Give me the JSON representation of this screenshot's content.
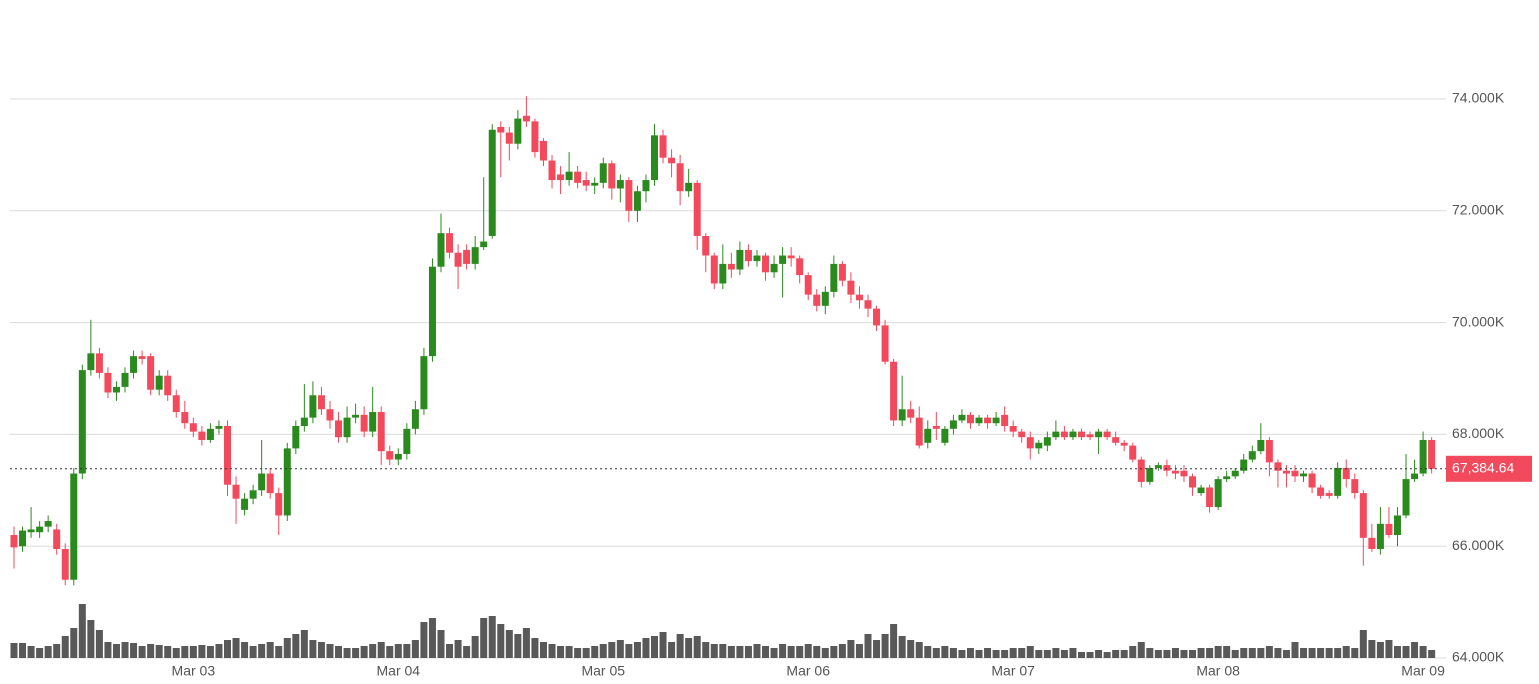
{
  "chart_data": {
    "type": "candlestick",
    "categories": [
      null,
      null,
      null,
      null,
      null,
      null,
      null,
      null,
      null,
      null,
      null,
      null,
      null,
      null,
      null,
      null,
      null,
      null,
      null,
      null,
      null,
      "Mar 03",
      null,
      null,
      null,
      null,
      null,
      null,
      null,
      null,
      null,
      null,
      null,
      null,
      null,
      null,
      null,
      null,
      null,
      null,
      null,
      null,
      null,
      null,
      null,
      "Mar 04",
      null,
      null,
      null,
      null,
      null,
      null,
      null,
      null,
      null,
      null,
      null,
      null,
      null,
      null,
      null,
      null,
      null,
      null,
      null,
      null,
      null,
      null,
      null,
      "Mar 05",
      null,
      null,
      null,
      null,
      null,
      null,
      null,
      null,
      null,
      null,
      null,
      null,
      null,
      null,
      null,
      null,
      null,
      null,
      null,
      null,
      null,
      null,
      null,
      "Mar 06",
      null,
      null,
      null,
      null,
      null,
      null,
      null,
      null,
      null,
      null,
      null,
      null,
      null,
      null,
      null,
      null,
      null,
      null,
      null,
      null,
      null,
      null,
      null,
      "Mar 07",
      null,
      null,
      null,
      null,
      null,
      null,
      null,
      null,
      null,
      null,
      null,
      null,
      null,
      null,
      null,
      null,
      null,
      null,
      null,
      null,
      null,
      null,
      null,
      "Mar 08",
      null,
      null,
      null,
      null,
      null,
      null,
      null,
      null,
      null,
      null,
      null,
      null,
      null,
      null,
      null,
      null,
      null,
      null,
      null,
      null,
      null,
      null,
      null,
      "Mar 09",
      null
    ],
    "open": [
      66200,
      66000,
      66250,
      66250,
      66350,
      66300,
      65950,
      65400,
      67300,
      69150,
      69450,
      69100,
      68750,
      68850,
      69100,
      69400,
      69400,
      68800,
      69050,
      68700,
      68400,
      68200,
      68050,
      67900,
      68100,
      68150,
      67100,
      66650,
      66850,
      67000,
      67300,
      66950,
      66550,
      67750,
      68150,
      68300,
      68700,
      68450,
      68250,
      67950,
      68300,
      68350,
      68050,
      68400,
      67700,
      67550,
      67650,
      68100,
      68450,
      69400,
      71000,
      71600,
      71250,
      71300,
      71050,
      71350,
      71550,
      73500,
      73400,
      73200,
      73700,
      73600,
      73250,
      72900,
      72650,
      72550,
      72700,
      72550,
      72450,
      72500,
      72850,
      72400,
      72550,
      72000,
      72350,
      72550,
      73350,
      72950,
      72850,
      72350,
      72500,
      71550,
      71200,
      70700,
      71050,
      70950,
      71300,
      71100,
      71200,
      70900,
      71050,
      71200,
      71150,
      70850,
      70500,
      70300,
      70550,
      71050,
      70750,
      70500,
      70400,
      70250,
      69950,
      69300,
      68250,
      68450,
      68300,
      67850,
      68150,
      67850,
      68100,
      68250,
      68350,
      68200,
      68300,
      68200,
      68350,
      68150,
      68050,
      67950,
      67750,
      67800,
      67950,
      68050,
      67950,
      68050,
      68000,
      67950,
      68050,
      67950,
      67850,
      67800,
      67550,
      67150,
      67400,
      67450,
      67350,
      67350,
      67250,
      66950,
      67050,
      66700,
      67200,
      67250,
      67350,
      67550,
      67700,
      67900,
      67500,
      67350,
      67350,
      67250,
      67300,
      67050,
      66950,
      66900,
      67400,
      67200,
      66950,
      66150,
      65950,
      66400,
      66200,
      66550,
      67200,
      67300,
      67900
    ],
    "high": [
      66350,
      66350,
      66700,
      66450,
      66550,
      66400,
      66050,
      67400,
      69250,
      70050,
      69550,
      69200,
      68950,
      69200,
      69500,
      69500,
      69450,
      69150,
      69150,
      68800,
      68600,
      68300,
      68150,
      68200,
      68250,
      68250,
      67250,
      66950,
      67100,
      67900,
      67400,
      67050,
      67850,
      68250,
      68900,
      68950,
      68850,
      68600,
      68400,
      68500,
      68550,
      68500,
      68850,
      68500,
      67800,
      67750,
      68200,
      68600,
      69550,
      71150,
      71950,
      71700,
      71400,
      71400,
      71550,
      72600,
      73550,
      73600,
      73500,
      73800,
      74050,
      73650,
      73300,
      73000,
      72800,
      73050,
      72800,
      72700,
      72600,
      72950,
      72900,
      72650,
      72600,
      72450,
      72650,
      73550,
      73450,
      73100,
      73000,
      72750,
      72550,
      71600,
      71250,
      71400,
      71250,
      71450,
      71400,
      71300,
      71250,
      71200,
      71350,
      71350,
      71200,
      70900,
      70600,
      70650,
      71200,
      71100,
      70900,
      70650,
      70500,
      70300,
      70050,
      69350,
      69050,
      68600,
      68500,
      68250,
      68400,
      68150,
      68350,
      68450,
      68400,
      68350,
      68350,
      68400,
      68500,
      68250,
      68100,
      68050,
      67900,
      68050,
      68250,
      68150,
      68100,
      68100,
      68050,
      68100,
      68100,
      68050,
      67900,
      67850,
      67600,
      67450,
      67500,
      67550,
      67450,
      67450,
      67300,
      67100,
      67100,
      67250,
      67350,
      67400,
      67650,
      67800,
      68200,
      67950,
      67550,
      67450,
      67450,
      67350,
      67350,
      67100,
      67000,
      67500,
      67550,
      67300,
      67000,
      66400,
      66700,
      66700,
      66700,
      67650,
      67550,
      68050,
      67950
    ],
    "low": [
      65600,
      65900,
      66150,
      66150,
      66250,
      65850,
      65300,
      65300,
      67200,
      69050,
      69000,
      68650,
      68600,
      68750,
      69000,
      69250,
      68700,
      68700,
      68600,
      68300,
      68100,
      67950,
      67800,
      67850,
      68000,
      66900,
      66400,
      66550,
      66750,
      66900,
      66850,
      66200,
      66450,
      67650,
      68050,
      68200,
      68350,
      68100,
      67850,
      67850,
      68200,
      67950,
      67950,
      67450,
      67450,
      67450,
      67550,
      68000,
      68350,
      69300,
      70900,
      71150,
      70600,
      70950,
      70950,
      71300,
      71500,
      72600,
      72900,
      73100,
      73500,
      72950,
      72800,
      72400,
      72300,
      72450,
      72400,
      72350,
      72300,
      72400,
      72200,
      72150,
      71800,
      71800,
      72150,
      72450,
      72850,
      72600,
      72100,
      72250,
      71300,
      70900,
      70600,
      70600,
      70800,
      70850,
      71000,
      71000,
      70750,
      70800,
      70450,
      71000,
      70700,
      70400,
      70200,
      70150,
      70450,
      70650,
      70350,
      70250,
      70100,
      69850,
      69250,
      68150,
      68150,
      68200,
      67750,
      67750,
      67900,
      67800,
      68000,
      68200,
      68100,
      68150,
      68100,
      68150,
      68050,
      67950,
      67850,
      67550,
      67650,
      67700,
      67900,
      67900,
      67900,
      67900,
      67900,
      67650,
      67900,
      67800,
      67700,
      67500,
      67050,
      67100,
      67350,
      67250,
      67200,
      67150,
      66900,
      66900,
      66600,
      66650,
      67150,
      67200,
      67300,
      67500,
      67650,
      67250,
      67050,
      67050,
      67150,
      67150,
      66950,
      66850,
      66850,
      66850,
      67050,
      66850,
      65650,
      65900,
      65850,
      66150,
      66000,
      66500,
      67150,
      67250,
      67300
    ],
    "close": [
      65980,
      66280,
      66300,
      66350,
      66450,
      65950,
      65400,
      67300,
      69150,
      69450,
      69100,
      68750,
      68850,
      69100,
      69400,
      69350,
      68800,
      69050,
      68700,
      68400,
      68200,
      68050,
      67900,
      68100,
      68150,
      67100,
      66850,
      66850,
      67000,
      67300,
      66950,
      66550,
      67750,
      68150,
      68300,
      68700,
      68450,
      68250,
      67950,
      68300,
      68350,
      68050,
      68400,
      67700,
      67550,
      67650,
      68100,
      68450,
      69400,
      71000,
      71600,
      71250,
      71000,
      71050,
      71350,
      71450,
      73450,
      73400,
      73200,
      73650,
      73600,
      73050,
      72900,
      72550,
      72550,
      72700,
      72500,
      72450,
      72500,
      72850,
      72400,
      72550,
      72000,
      72350,
      72550,
      73350,
      72950,
      72850,
      72350,
      72500,
      71550,
      71200,
      70700,
      71050,
      70950,
      71300,
      71100,
      71200,
      70900,
      71050,
      71200,
      71150,
      70850,
      70500,
      70300,
      70550,
      71050,
      70750,
      70500,
      70400,
      70250,
      69950,
      69300,
      68250,
      68450,
      68300,
      67800,
      68100,
      68100,
      68100,
      68250,
      68350,
      68200,
      68300,
      68200,
      68300,
      68150,
      68050,
      67950,
      67750,
      67850,
      67950,
      68050,
      67950,
      68050,
      67950,
      67950,
      68050,
      67950,
      67850,
      67800,
      67550,
      67150,
      67400,
      67450,
      67350,
      67300,
      67250,
      67050,
      67050,
      66700,
      67200,
      67250,
      67350,
      67550,
      67700,
      67900,
      67500,
      67350,
      67300,
      67250,
      67300,
      67050,
      66900,
      66900,
      67400,
      67200,
      66950,
      66150,
      65950,
      66400,
      66200,
      66550,
      67200,
      67300,
      67900,
      67384.64
    ],
    "volume": [
      15,
      15,
      12,
      10,
      12,
      14,
      22,
      30,
      54,
      38,
      28,
      16,
      14,
      16,
      15,
      12,
      14,
      13,
      12,
      10,
      12,
      12,
      13,
      12,
      14,
      18,
      20,
      16,
      12,
      14,
      16,
      12,
      20,
      24,
      28,
      18,
      16,
      14,
      12,
      10,
      10,
      12,
      14,
      16,
      12,
      14,
      14,
      18,
      36,
      40,
      28,
      14,
      18,
      12,
      22,
      40,
      42,
      34,
      28,
      24,
      30,
      20,
      16,
      14,
      12,
      12,
      10,
      10,
      12,
      14,
      16,
      18,
      14,
      16,
      20,
      22,
      26,
      16,
      24,
      20,
      22,
      16,
      14,
      14,
      12,
      12,
      12,
      14,
      12,
      10,
      14,
      12,
      12,
      14,
      12,
      10,
      12,
      14,
      18,
      14,
      24,
      18,
      24,
      34,
      22,
      18,
      16,
      12,
      10,
      12,
      10,
      8,
      10,
      8,
      10,
      8,
      8,
      10,
      10,
      12,
      8,
      8,
      10,
      8,
      10,
      6,
      6,
      8,
      6,
      8,
      8,
      12,
      16,
      10,
      8,
      8,
      10,
      8,
      8,
      10,
      10,
      12,
      12,
      8,
      10,
      10,
      10,
      12,
      10,
      8,
      16,
      10,
      10,
      10,
      10,
      10,
      12,
      10,
      28,
      18,
      16,
      18,
      12,
      12,
      16,
      12,
      8
    ],
    "up_color": "#2b8a1e",
    "down_color": "#f2495c",
    "volume_color": "#595959",
    "ylim": [
      64000,
      74000
    ],
    "yticks": [
      {
        "value": 64000,
        "label": "64.000K"
      },
      {
        "value": 66000,
        "label": "66.000K"
      },
      {
        "value": 68000,
        "label": "68.000K"
      },
      {
        "value": 70000,
        "label": "70.000K"
      },
      {
        "value": 72000,
        "label": "72.000K"
      },
      {
        "value": 74000,
        "label": "74.000K"
      }
    ],
    "grid": true,
    "last_price": {
      "value": 67384.64,
      "label": "67,384.64"
    }
  }
}
